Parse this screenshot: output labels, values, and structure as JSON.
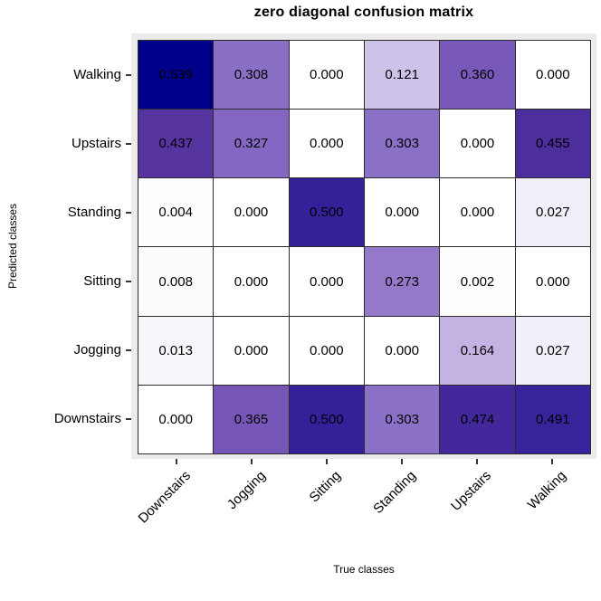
{
  "title": "zero diagonal confusion matrix",
  "chart_data": {
    "type": "heatmap",
    "title": "zero diagonal confusion matrix",
    "xlabel": "True classes",
    "ylabel": "Predicted classes",
    "x_categories": [
      "Downstairs",
      "Jogging",
      "Sitting",
      "Standing",
      "Upstairs",
      "Walking"
    ],
    "y_categories": [
      "Walking",
      "Upstairs",
      "Standing",
      "Sitting",
      "Jogging",
      "Downstairs"
    ],
    "values": [
      [
        0.539,
        0.308,
        0.0,
        0.121,
        0.36,
        0.0
      ],
      [
        0.437,
        0.327,
        0.0,
        0.303,
        0.0,
        0.455
      ],
      [
        0.004,
        0.0,
        0.5,
        0.0,
        0.0,
        0.027
      ],
      [
        0.008,
        0.0,
        0.0,
        0.273,
        0.002,
        0.0
      ],
      [
        0.013,
        0.0,
        0.0,
        0.0,
        0.164,
        0.027
      ],
      [
        0.0,
        0.365,
        0.5,
        0.303,
        0.474,
        0.491
      ]
    ],
    "value_decimals": 3,
    "value_range": [
      0,
      0.539
    ],
    "legend": "none",
    "grid": "off",
    "x_label_rotation_deg": 45
  },
  "colors": {
    "panel_background": "#EBEBEB",
    "cell_border": "#2B2B2B",
    "tick": "#333333",
    "cell_text": "#000000",
    "color_scale_stops": [
      {
        "value": 0.0,
        "color": "#FFFFFF"
      },
      {
        "value": 0.03,
        "color": "#F1EDF8"
      },
      {
        "value": 0.121,
        "color": "#CFC2E8"
      },
      {
        "value": 0.164,
        "color": "#C4B2E2"
      },
      {
        "value": 0.273,
        "color": "#9379C8"
      },
      {
        "value": 0.308,
        "color": "#8A6FC7"
      },
      {
        "value": 0.365,
        "color": "#7656B7"
      },
      {
        "value": 0.437,
        "color": "#56349F"
      },
      {
        "value": 0.5,
        "color": "#342099"
      },
      {
        "value": 0.539,
        "color": "#00008B"
      }
    ]
  }
}
